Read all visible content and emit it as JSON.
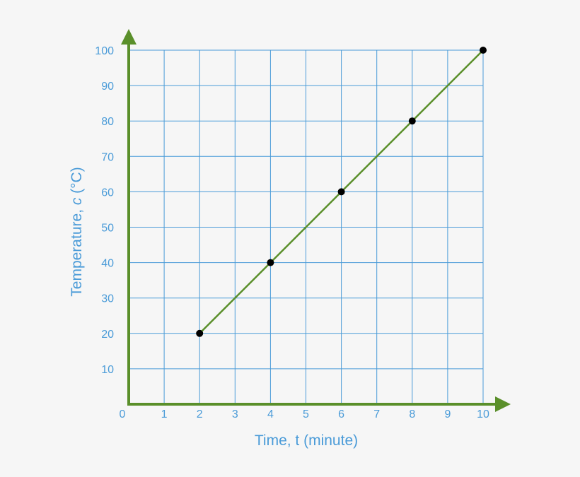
{
  "chart_data": {
    "type": "line",
    "title": "",
    "xlabel": "Time, t (minute)",
    "ylabel_parts": [
      "Temperature, ",
      "c",
      " (°C)"
    ],
    "ylabel": "Temperature, c (°C)",
    "x_ticks": [
      "0",
      "1",
      "2",
      "3",
      "4",
      "5",
      "6",
      "7",
      "8",
      "9",
      "10"
    ],
    "y_ticks": [
      "10",
      "20",
      "30",
      "40",
      "50",
      "60",
      "70",
      "80",
      "90",
      "100"
    ],
    "xlim": [
      0,
      10
    ],
    "ylim": [
      0,
      100
    ],
    "grid": true,
    "series": [
      {
        "x": [
          2,
          4,
          6,
          8,
          10
        ],
        "y": [
          20,
          40,
          60,
          80,
          100
        ]
      }
    ],
    "colors": {
      "axis": "#5a8f2a",
      "line": "#5a8f2a",
      "grid": "#4a9bd8",
      "labels": "#4a9bd8",
      "points": "#000000",
      "background": "#f6f6f6"
    }
  }
}
